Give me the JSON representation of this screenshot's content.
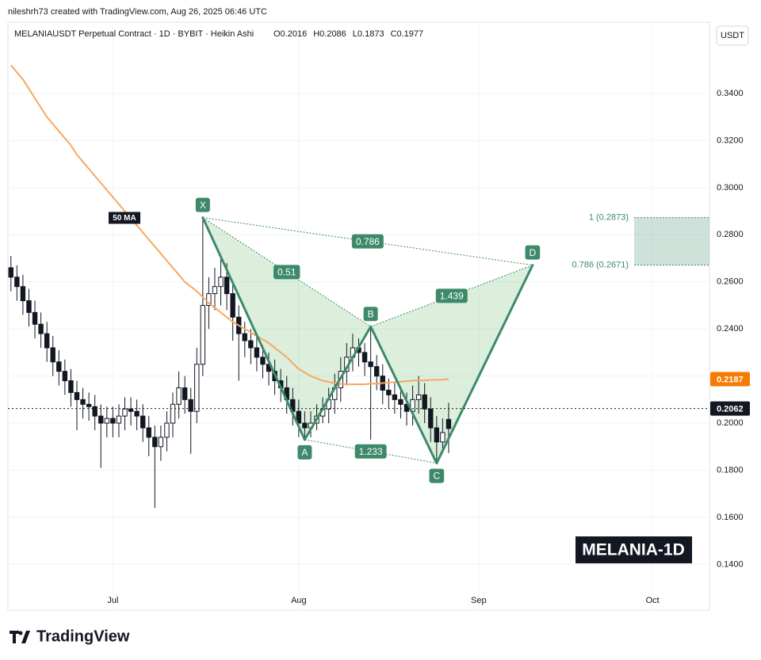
{
  "credit": "nileshrh73 created with TradingView.com, Aug 26, 2025 06:46 UTC",
  "brand": "TradingView",
  "chart_data": {
    "type": "candlestick",
    "symbol": "MELANIAUSDT Perpetual Contract · 1D · BYBIT · Heikin Ashi",
    "ohlc_labels": [
      "O0.2016",
      "H0.2086",
      "L0.1873",
      "C0.1977"
    ],
    "currency": "USDT",
    "watermark": "MELANIA-1D",
    "categories": [
      null,
      null,
      null,
      null,
      null,
      null,
      null,
      null,
      null,
      null,
      null,
      null,
      null,
      null,
      null,
      null,
      null,
      "Jul",
      null,
      null,
      null,
      null,
      null,
      null,
      null,
      null,
      null,
      null,
      null,
      null,
      null,
      null,
      null,
      null,
      null,
      null,
      null,
      null,
      null,
      null,
      null,
      null,
      null,
      null,
      null,
      null,
      null,
      null,
      "Aug",
      null,
      null,
      null,
      null,
      null,
      null,
      null,
      null,
      null,
      null,
      null,
      null,
      null,
      null,
      null,
      null,
      null,
      null,
      null,
      null,
      null,
      null,
      null,
      null,
      null,
      null,
      null,
      null,
      null,
      "Sep",
      null,
      null,
      null,
      null,
      null,
      null,
      null,
      null,
      null,
      null,
      null,
      null,
      null,
      null,
      null,
      null,
      null,
      null,
      null,
      null,
      null,
      null,
      null,
      null,
      null,
      null,
      null,
      null,
      "Oct",
      null,
      null,
      null,
      null,
      null,
      null,
      null,
      null,
      null
    ],
    "opens": [
      0.266,
      0.262,
      0.258,
      0.252,
      0.247,
      0.242,
      0.238,
      0.232,
      0.226,
      0.222,
      0.218,
      0.213,
      0.21,
      0.208,
      0.207,
      0.203,
      0.2,
      0.202,
      0.2,
      0.203,
      0.206,
      0.205,
      0.203,
      0.198,
      0.194,
      0.19,
      0.194,
      0.2,
      0.208,
      0.215,
      0.21,
      0.205,
      0.225,
      0.25,
      0.255,
      0.258,
      0.262,
      0.255,
      0.245,
      0.238,
      0.235,
      0.232,
      0.228,
      0.225,
      0.222,
      0.218,
      0.215,
      0.21,
      0.205,
      0.2,
      0.198,
      0.2,
      0.203,
      0.206,
      0.21,
      0.215,
      0.222,
      0.228,
      0.232,
      0.23,
      0.226,
      0.224,
      0.22,
      0.214,
      0.212,
      0.21,
      0.208,
      0.205,
      0.21,
      0.212,
      0.206,
      0.198,
      0.192,
      0.2016,
      null,
      null,
      null,
      null,
      null,
      null,
      null,
      null,
      null,
      null,
      null,
      null,
      null,
      null,
      null,
      null,
      null,
      null,
      null,
      null,
      null,
      null,
      null,
      null,
      null,
      null,
      null,
      null,
      null,
      null,
      null,
      null,
      null,
      null,
      null,
      null,
      null,
      null,
      null,
      null,
      null,
      null,
      null,
      null,
      null
    ],
    "highs": [
      0.271,
      0.267,
      0.263,
      0.257,
      0.252,
      0.247,
      0.243,
      0.237,
      0.231,
      0.227,
      0.223,
      0.218,
      0.215,
      0.213,
      0.212,
      0.208,
      0.207,
      0.207,
      0.208,
      0.211,
      0.211,
      0.21,
      0.208,
      0.203,
      0.199,
      0.199,
      0.205,
      0.213,
      0.222,
      0.22,
      0.215,
      0.232,
      0.287,
      0.262,
      0.266,
      0.27,
      0.268,
      0.26,
      0.25,
      0.243,
      0.24,
      0.237,
      0.233,
      0.23,
      0.227,
      0.223,
      0.22,
      0.215,
      0.21,
      0.205,
      0.205,
      0.208,
      0.211,
      0.215,
      0.221,
      0.228,
      0.234,
      0.238,
      0.236,
      0.234,
      0.241,
      0.229,
      0.225,
      0.219,
      0.217,
      0.215,
      0.213,
      0.216,
      0.22,
      0.217,
      0.211,
      0.203,
      0.202,
      0.2086,
      null,
      null,
      null,
      null,
      null,
      null,
      null,
      null,
      null,
      null,
      null,
      null,
      null,
      null,
      null,
      null,
      null,
      null,
      null,
      null,
      null,
      null,
      null,
      null,
      null,
      null,
      null,
      null,
      null,
      null,
      null,
      null,
      null,
      null,
      null,
      null,
      null,
      null,
      null,
      null,
      null,
      null,
      null,
      null,
      null
    ],
    "lows": [
      0.256,
      0.252,
      0.246,
      0.241,
      0.236,
      0.232,
      0.226,
      0.22,
      0.216,
      0.212,
      0.207,
      0.197,
      0.202,
      0.201,
      0.197,
      0.181,
      0.194,
      0.194,
      0.194,
      0.197,
      0.199,
      0.197,
      0.192,
      0.186,
      0.164,
      0.184,
      0.188,
      0.194,
      0.202,
      0.204,
      0.187,
      0.2,
      0.22,
      0.24,
      0.248,
      0.25,
      0.248,
      0.235,
      0.218,
      0.228,
      0.225,
      0.222,
      0.219,
      0.216,
      0.212,
      0.209,
      0.204,
      0.199,
      0.194,
      0.193,
      0.194,
      0.197,
      0.2,
      0.2,
      0.204,
      0.209,
      0.216,
      0.222,
      0.224,
      0.22,
      0.193,
      0.214,
      0.208,
      0.206,
      0.204,
      0.202,
      0.199,
      0.199,
      0.204,
      0.2,
      0.192,
      0.183,
      0.188,
      0.1873,
      null,
      null,
      null,
      null,
      null,
      null,
      null,
      null,
      null,
      null,
      null,
      null,
      null,
      null,
      null,
      null,
      null,
      null,
      null,
      null,
      null,
      null,
      null,
      null,
      null,
      null,
      null,
      null,
      null,
      null,
      null,
      null,
      null,
      null,
      null,
      null,
      null,
      null,
      null,
      null,
      null,
      null,
      null,
      null,
      null
    ],
    "closes": [
      0.262,
      0.258,
      0.252,
      0.247,
      0.242,
      0.238,
      0.232,
      0.226,
      0.222,
      0.218,
      0.213,
      0.21,
      0.208,
      0.207,
      0.203,
      0.2,
      0.202,
      0.2,
      0.203,
      0.206,
      0.205,
      0.203,
      0.198,
      0.194,
      0.19,
      0.194,
      0.2,
      0.208,
      0.215,
      0.21,
      0.205,
      0.225,
      0.25,
      0.255,
      0.258,
      0.262,
      0.255,
      0.245,
      0.238,
      0.235,
      0.232,
      0.228,
      0.225,
      0.222,
      0.218,
      0.215,
      0.21,
      0.205,
      0.2,
      0.198,
      0.2,
      0.203,
      0.206,
      0.21,
      0.215,
      0.222,
      0.228,
      0.232,
      0.23,
      0.226,
      0.224,
      0.22,
      0.214,
      0.212,
      0.21,
      0.208,
      0.205,
      0.21,
      0.212,
      0.206,
      0.198,
      0.192,
      0.196,
      0.1977,
      null,
      null,
      null,
      null,
      null,
      null,
      null,
      null,
      null,
      null,
      null,
      null,
      null,
      null,
      null,
      null,
      null,
      null,
      null,
      null,
      null,
      null,
      null,
      null,
      null,
      null,
      null,
      null,
      null,
      null,
      null,
      null,
      null,
      null,
      null,
      null,
      null,
      null,
      null,
      null,
      null,
      null,
      null,
      null,
      null
    ],
    "ylim": [
      0.1206,
      0.3612
    ],
    "yticks": [
      {
        "value": 0.14,
        "label": "0.1400"
      },
      {
        "value": 0.16,
        "label": "0.1600"
      },
      {
        "value": 0.18,
        "label": "0.1800"
      },
      {
        "value": 0.2,
        "label": "0.2000"
      },
      {
        "value": 0.22,
        "label": "0.2200"
      },
      {
        "value": 0.24,
        "label": "0.2400"
      },
      {
        "value": 0.26,
        "label": "0.2600"
      },
      {
        "value": 0.28,
        "label": "0.2800"
      },
      {
        "value": 0.3,
        "label": "0.3000"
      },
      {
        "value": 0.32,
        "label": "0.3200"
      },
      {
        "value": 0.34,
        "label": "0.3400"
      }
    ],
    "grid": true,
    "up_color": "#ffffff",
    "down_color": "#131722",
    "ma": {
      "name": "50 MA",
      "color": "#f7a862",
      "values": [
        0.352,
        0.349,
        0.346,
        0.342,
        0.338,
        0.334,
        0.33,
        0.327,
        0.324,
        0.321,
        0.318,
        0.314,
        0.311,
        0.308,
        0.305,
        0.302,
        0.299,
        0.296,
        0.293,
        0.29,
        0.287,
        0.284,
        0.281,
        0.278,
        0.275,
        0.272,
        0.269,
        0.266,
        0.263,
        0.26,
        0.258,
        0.256,
        0.2535,
        0.251,
        0.249,
        0.247,
        0.245,
        0.243,
        0.2415,
        0.24,
        0.2385,
        0.237,
        0.2355,
        0.234,
        0.232,
        0.23,
        0.228,
        0.2255,
        0.223,
        0.2215,
        0.22,
        0.219,
        0.218,
        0.2175,
        0.217,
        0.2167,
        0.2165,
        0.2165,
        0.2165,
        0.2165,
        0.2167,
        0.2168,
        0.217,
        0.2172,
        0.2174,
        0.2176,
        0.2178,
        0.218,
        0.2181,
        0.2182,
        0.2183,
        0.2184,
        0.2185,
        0.2187,
        null,
        null,
        null,
        null,
        null,
        null,
        null,
        null,
        null,
        null,
        null,
        null,
        null,
        null,
        null,
        null,
        null,
        null,
        null,
        null,
        null,
        null,
        null,
        null,
        null,
        null,
        null,
        null,
        null,
        null,
        null,
        null,
        null,
        null,
        null,
        null,
        null,
        null,
        null,
        null,
        null,
        null,
        null,
        null,
        null
      ]
    },
    "last_price": {
      "value": 0.2062,
      "label": "0.2062"
    },
    "pattern": {
      "color": "#3d8a6b",
      "values": [
        null,
        null,
        null,
        null,
        null,
        null,
        null,
        null,
        null,
        null,
        null,
        null,
        null,
        null,
        null,
        null,
        null,
        null,
        null,
        null,
        null,
        null,
        null,
        null,
        null,
        null,
        null,
        null,
        null,
        null,
        null,
        null,
        0.2873,
        null,
        null,
        null,
        null,
        null,
        null,
        null,
        null,
        null,
        null,
        null,
        null,
        null,
        null,
        null,
        null,
        0.193,
        null,
        null,
        null,
        null,
        null,
        null,
        null,
        null,
        null,
        null,
        0.241,
        null,
        null,
        null,
        null,
        null,
        null,
        null,
        null,
        null,
        null,
        0.183,
        null,
        null,
        null,
        null,
        null,
        null,
        null,
        null,
        null,
        null,
        null,
        null,
        null,
        null,
        null,
        0.2671,
        null,
        null,
        null,
        null,
        null,
        null,
        null,
        null,
        null,
        null,
        null,
        null,
        null,
        null,
        null,
        null,
        null,
        null,
        null,
        null,
        null,
        null,
        null,
        null,
        null,
        null,
        null,
        null,
        null,
        null,
        null
      ],
      "labels": [
        null,
        null,
        null,
        null,
        null,
        null,
        null,
        null,
        null,
        null,
        null,
        null,
        null,
        null,
        null,
        null,
        null,
        null,
        null,
        null,
        null,
        null,
        null,
        null,
        null,
        null,
        null,
        null,
        null,
        null,
        null,
        null,
        "X",
        null,
        null,
        null,
        null,
        null,
        null,
        null,
        null,
        null,
        null,
        null,
        null,
        null,
        null,
        null,
        null,
        "A",
        null,
        null,
        null,
        null,
        null,
        null,
        null,
        null,
        null,
        null,
        "B",
        null,
        null,
        null,
        null,
        null,
        null,
        null,
        null,
        null,
        null,
        "C",
        null,
        null,
        null,
        null,
        null,
        null,
        null,
        null,
        null,
        null,
        null,
        null,
        null,
        null,
        null,
        "D",
        null,
        null,
        null,
        null,
        null,
        null,
        null,
        null,
        null,
        null,
        null,
        null,
        null,
        null,
        null,
        null,
        null,
        null,
        null,
        null,
        null,
        null,
        null,
        null,
        null,
        null,
        null,
        null,
        null,
        null,
        null
      ],
      "ratios": [
        0.786,
        0.51,
        1.439,
        1.233
      ]
    },
    "fib_levels": [
      {
        "value": 0.2873,
        "label": "1 (0.2873)"
      },
      {
        "value": 0.2671,
        "label": "0.786 (0.2671)"
      }
    ]
  }
}
